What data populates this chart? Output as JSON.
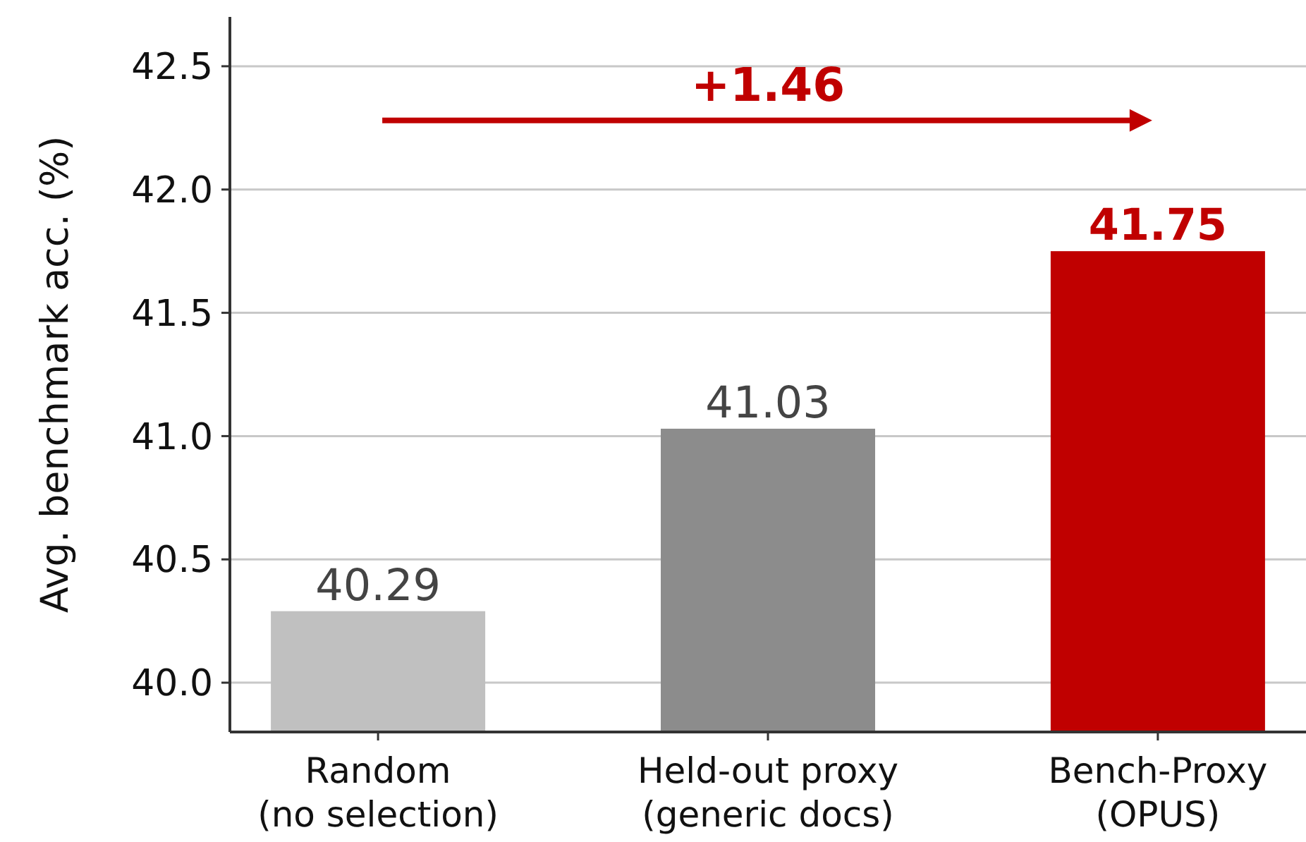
{
  "chart_data": {
    "type": "bar",
    "ylabel": "Avg. benchmark acc. (%)",
    "categories": [
      "Random\n(no selection)",
      "Held-out proxy\n(generic docs)",
      "Bench-Proxy\n(OPUS)"
    ],
    "values": [
      40.29,
      41.03,
      41.75
    ],
    "colors": [
      "#c0c0c0",
      "#8c8c8c",
      "#c00000"
    ],
    "ylim": [
      39.8,
      42.7
    ],
    "yticks": [
      {
        "value": 40,
        "label": "40.0"
      },
      40.5,
      {
        "value": 41,
        "label": "41.0"
      },
      41.5,
      {
        "value": 42,
        "label": "42.0"
      },
      42.5
    ],
    "grid": "y",
    "data_labels": true,
    "annotations": [
      "+1.46"
    ]
  }
}
